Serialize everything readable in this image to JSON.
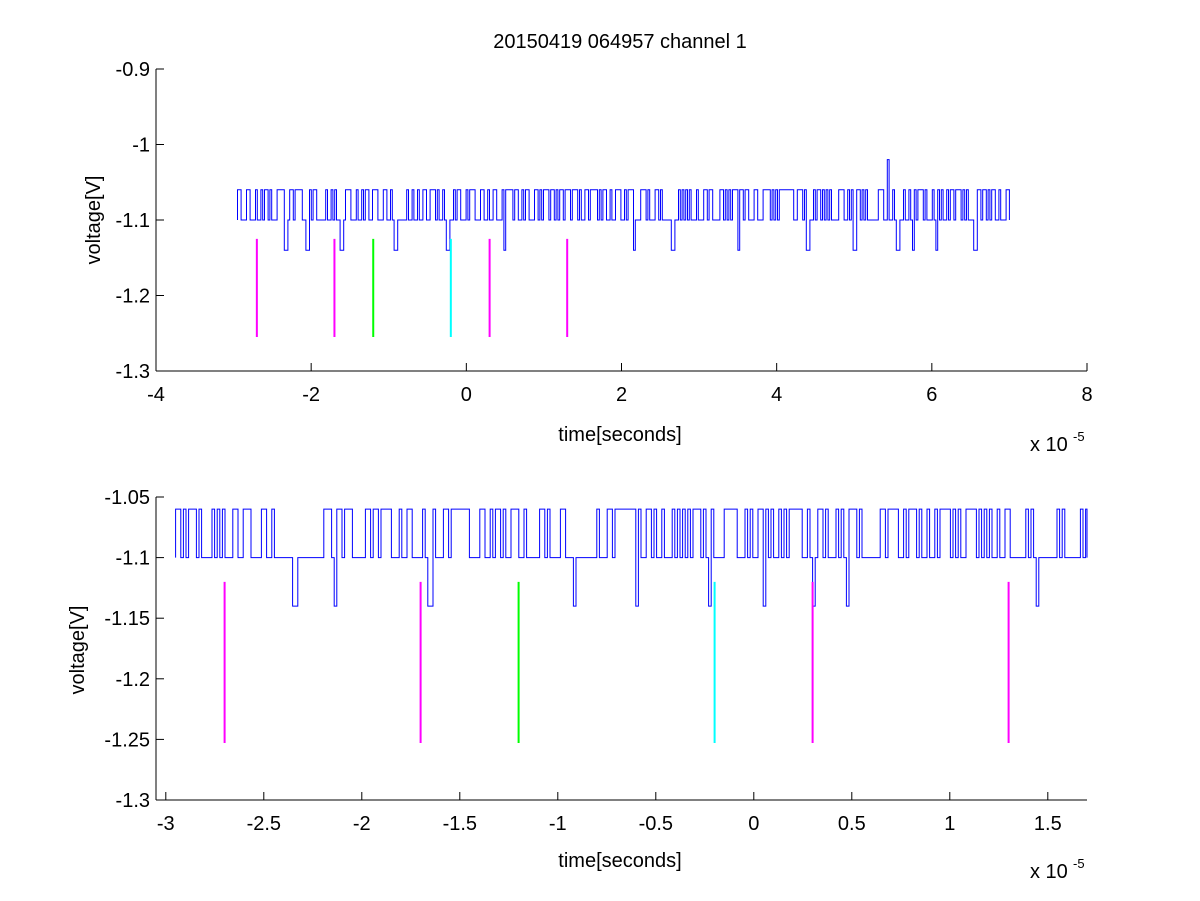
{
  "figure": {
    "title": "20150419 064957 channel 1"
  },
  "chart_data": [
    {
      "type": "line",
      "title": "20150419 064957 channel 1",
      "xlabel": "time[seconds]",
      "ylabel": "voltage[V]",
      "x_exponent_label": "x 10",
      "x_exponent_power": "-5",
      "xlim": [
        -4,
        8
      ],
      "ylim": [
        -1.3,
        -0.9
      ],
      "x_scale_factor": 1e-05,
      "xticks": [
        -4,
        -2,
        0,
        2,
        4,
        6,
        8
      ],
      "xtick_labels": [
        "-4",
        "-2",
        "0",
        "2",
        "4",
        "6",
        "8"
      ],
      "yticks": [
        -1.3,
        -1.2,
        -1.1,
        -1.0,
        -0.9
      ],
      "ytick_labels": [
        "-1.3",
        "-1.2",
        "-1.1",
        "-1",
        "-0.9"
      ],
      "grid": false,
      "legend": "none",
      "series": [
        {
          "color": "#0000ff",
          "x_range": [
            -2.95,
            7.0
          ],
          "baseline": -1.1,
          "high_level": -1.06,
          "dip_level": -1.14,
          "dips_x": [
            -2.33,
            -2.05,
            -1.62,
            -0.92,
            -0.25,
            0.48,
            2.15,
            2.65,
            3.5,
            4.4,
            5.0,
            5.55,
            5.75,
            6.05,
            6.55
          ],
          "spike": {
            "x": 5.42,
            "y": -1.02
          }
        }
      ],
      "markers": [
        {
          "x": -2.7,
          "color": "#ff00ff",
          "y_from": -1.125,
          "y_to": -1.255
        },
        {
          "x": -1.7,
          "color": "#ff00ff",
          "y_from": -1.125,
          "y_to": -1.255
        },
        {
          "x": -1.2,
          "color": "#00ff00",
          "y_from": -1.125,
          "y_to": -1.255
        },
        {
          "x": -0.2,
          "color": "#00ffff",
          "y_from": -1.125,
          "y_to": -1.255
        },
        {
          "x": 0.3,
          "color": "#ff00ff",
          "y_from": -1.125,
          "y_to": -1.255
        },
        {
          "x": 1.3,
          "color": "#ff00ff",
          "y_from": -1.125,
          "y_to": -1.255
        }
      ]
    },
    {
      "type": "line",
      "title": "",
      "xlabel": "time[seconds]",
      "ylabel": "voltage[V]",
      "x_exponent_label": "x 10",
      "x_exponent_power": "-5",
      "xlim": [
        -3.05,
        1.7
      ],
      "ylim": [
        -1.3,
        -1.05
      ],
      "x_scale_factor": 1e-05,
      "xticks": [
        -3,
        -2.5,
        -2,
        -1.5,
        -1,
        -0.5,
        0,
        0.5,
        1,
        1.5
      ],
      "xtick_labels": [
        "-3",
        "-2.5",
        "-2",
        "-1.5",
        "-1",
        "-0.5",
        "0",
        "0.5",
        "1",
        "1.5"
      ],
      "yticks": [
        -1.3,
        -1.25,
        -1.2,
        -1.15,
        -1.1,
        -1.05
      ],
      "ytick_labels": [
        "-1.3",
        "-1.25",
        "-1.2",
        "-1.15",
        "-1.1",
        "-1.05"
      ],
      "grid": false,
      "legend": "none",
      "series": [
        {
          "color": "#0000ff",
          "x_range": [
            -2.95,
            1.7
          ],
          "baseline": -1.1,
          "high_level": -1.06,
          "dip_level": -1.14,
          "dips_x": [
            -2.35,
            -2.14,
            -1.66,
            -0.92,
            -0.6,
            -0.23,
            0.05,
            0.3,
            0.47,
            1.44
          ],
          "flat_ranges": [
            [
              -2.45,
              -2.2
            ],
            [
              -0.95,
              -0.82
            ],
            [
              0.55,
              0.62
            ],
            [
              1.3,
              1.38
            ],
            [
              1.58,
              1.65
            ]
          ]
        }
      ],
      "markers": [
        {
          "x": -2.7,
          "color": "#ff00ff",
          "y_from": -1.12,
          "y_to": -1.253
        },
        {
          "x": -1.7,
          "color": "#ff00ff",
          "y_from": -1.12,
          "y_to": -1.253
        },
        {
          "x": -1.2,
          "color": "#00ff00",
          "y_from": -1.12,
          "y_to": -1.253
        },
        {
          "x": -0.2,
          "color": "#00ffff",
          "y_from": -1.12,
          "y_to": -1.253
        },
        {
          "x": 0.3,
          "color": "#ff00ff",
          "y_from": -1.12,
          "y_to": -1.253
        },
        {
          "x": 1.3,
          "color": "#ff00ff",
          "y_from": -1.12,
          "y_to": -1.253
        }
      ]
    }
  ]
}
